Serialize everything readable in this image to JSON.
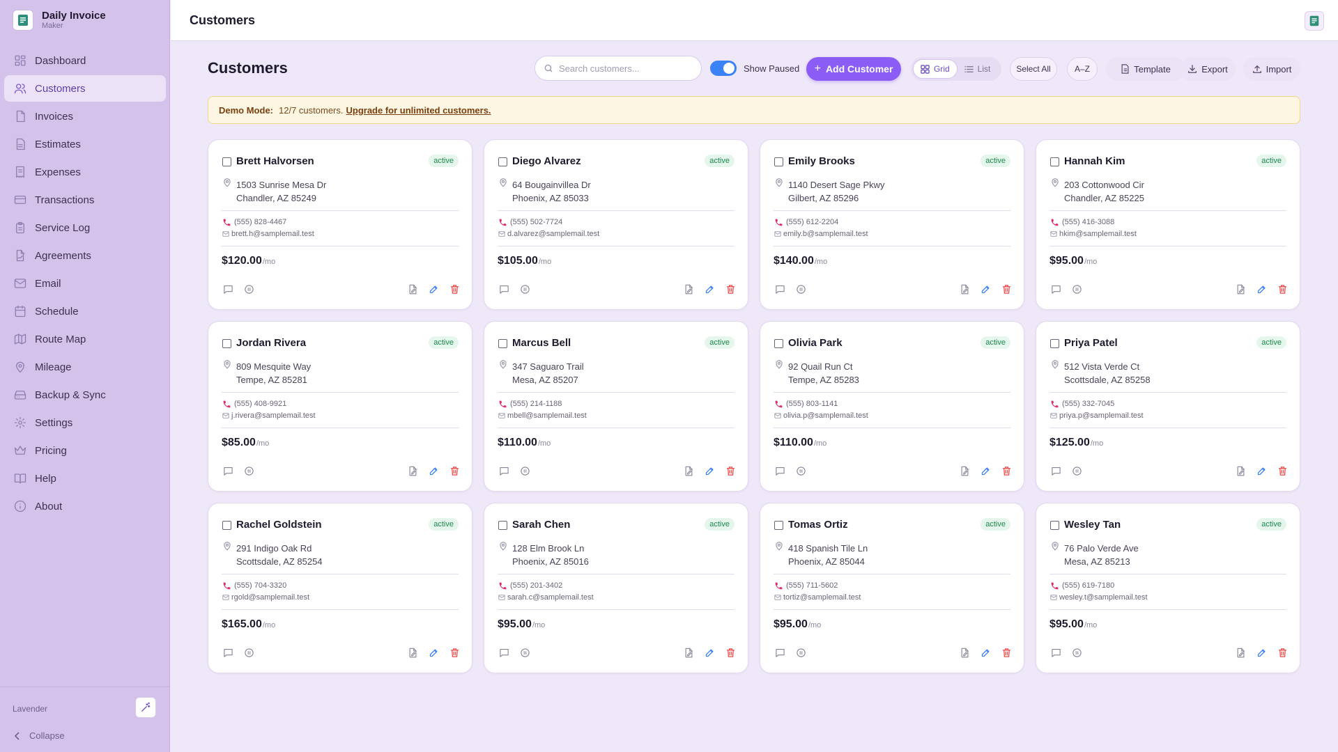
{
  "app": {
    "name": "Daily Invoice",
    "subtitle": "Maker"
  },
  "sidebar": {
    "items": [
      {
        "label": "Dashboard",
        "icon": "dashboard-icon",
        "active": false
      },
      {
        "label": "Customers",
        "icon": "users-icon",
        "active": true
      },
      {
        "label": "Invoices",
        "icon": "file-icon",
        "active": false
      },
      {
        "label": "Estimates",
        "icon": "file-text-icon",
        "active": false
      },
      {
        "label": "Expenses",
        "icon": "receipt-icon",
        "active": false
      },
      {
        "label": "Transactions",
        "icon": "credit-card-icon",
        "active": false
      },
      {
        "label": "Service Log",
        "icon": "clipboard-icon",
        "active": false
      },
      {
        "label": "Agreements",
        "icon": "file-signature-icon",
        "active": false
      },
      {
        "label": "Email",
        "icon": "mail-icon",
        "active": false
      },
      {
        "label": "Schedule",
        "icon": "calendar-icon",
        "active": false
      },
      {
        "label": "Route Map",
        "icon": "map-icon",
        "active": false
      },
      {
        "label": "Mileage",
        "icon": "map-pin-icon",
        "active": false
      },
      {
        "label": "Backup & Sync",
        "icon": "hard-drive-icon",
        "active": false
      },
      {
        "label": "Settings",
        "icon": "gear-icon",
        "active": false
      },
      {
        "label": "Pricing",
        "icon": "crown-icon",
        "active": false
      },
      {
        "label": "Help",
        "icon": "book-icon",
        "active": false
      },
      {
        "label": "About",
        "icon": "info-icon",
        "active": false
      }
    ],
    "theme_label": "Lavender",
    "collapse_label": "Collapse"
  },
  "topbar": {
    "title": "Customers"
  },
  "main": {
    "title": "Customers",
    "search_placeholder": "Search customers...",
    "show_paused_label": "Show Paused",
    "show_paused_on": true,
    "add_customer_label": "Add Customer",
    "view_grid_label": "Grid",
    "view_list_label": "List",
    "select_all_label": "Select All",
    "sort_label": "A–Z",
    "template_label": "Template",
    "export_label": "Export",
    "import_label": "Import"
  },
  "banner": {
    "label": "Demo Mode:",
    "text": "12/7 customers.",
    "link": "Upgrade for unlimited customers."
  },
  "customers": [
    {
      "name": "Brett Halvorsen",
      "status": "active",
      "address1": "1503 Sunrise Mesa Dr",
      "address2": "Chandler, AZ 85249",
      "phone": "(555) 828-4467",
      "email": "brett.h@samplemail.test",
      "price": "$120.00",
      "per": "/mo"
    },
    {
      "name": "Diego Alvarez",
      "status": "active",
      "address1": "64 Bougainvillea Dr",
      "address2": "Phoenix, AZ 85033",
      "phone": "(555) 502-7724",
      "email": "d.alvarez@samplemail.test",
      "price": "$105.00",
      "per": "/mo"
    },
    {
      "name": "Emily Brooks",
      "status": "active",
      "address1": "1140 Desert Sage Pkwy",
      "address2": "Gilbert, AZ 85296",
      "phone": "(555) 612-2204",
      "email": "emily.b@samplemail.test",
      "price": "$140.00",
      "per": "/mo"
    },
    {
      "name": "Hannah Kim",
      "status": "active",
      "address1": "203 Cottonwood Cir",
      "address2": "Chandler, AZ 85225",
      "phone": "(555) 416-3088",
      "email": "hkim@samplemail.test",
      "price": "$95.00",
      "per": "/mo"
    },
    {
      "name": "Jordan Rivera",
      "status": "active",
      "address1": "809 Mesquite Way",
      "address2": "Tempe, AZ 85281",
      "phone": "(555) 408-9921",
      "email": "j.rivera@samplemail.test",
      "price": "$85.00",
      "per": "/mo"
    },
    {
      "name": "Marcus Bell",
      "status": "active",
      "address1": "347 Saguaro Trail",
      "address2": "Mesa, AZ 85207",
      "phone": "(555) 214-1188",
      "email": "mbell@samplemail.test",
      "price": "$110.00",
      "per": "/mo"
    },
    {
      "name": "Olivia Park",
      "status": "active",
      "address1": "92 Quail Run Ct",
      "address2": "Tempe, AZ 85283",
      "phone": "(555) 803-1141",
      "email": "olivia.p@samplemail.test",
      "price": "$110.00",
      "per": "/mo"
    },
    {
      "name": "Priya Patel",
      "status": "active",
      "address1": "512 Vista Verde Ct",
      "address2": "Scottsdale, AZ 85258",
      "phone": "(555) 332-7045",
      "email": "priya.p@samplemail.test",
      "price": "$125.00",
      "per": "/mo"
    },
    {
      "name": "Rachel Goldstein",
      "status": "active",
      "address1": "291 Indigo Oak Rd",
      "address2": "Scottsdale, AZ 85254",
      "phone": "(555) 704-3320",
      "email": "rgold@samplemail.test",
      "price": "$165.00",
      "per": "/mo"
    },
    {
      "name": "Sarah Chen",
      "status": "active",
      "address1": "128 Elm Brook Ln",
      "address2": "Phoenix, AZ 85016",
      "phone": "(555) 201-3402",
      "email": "sarah.c@samplemail.test",
      "price": "$95.00",
      "per": "/mo"
    },
    {
      "name": "Tomas Ortiz",
      "status": "active",
      "address1": "418 Spanish Tile Ln",
      "address2": "Phoenix, AZ 85044",
      "phone": "(555) 711-5602",
      "email": "tortiz@samplemail.test",
      "price": "$95.00",
      "per": "/mo"
    },
    {
      "name": "Wesley Tan",
      "status": "active",
      "address1": "76 Palo Verde Ave",
      "address2": "Mesa, AZ 85213",
      "phone": "(555) 619-7180",
      "email": "wesley.t@samplemail.test",
      "price": "$95.00",
      "per": "/mo"
    }
  ],
  "colors": {
    "accent": "#8b5cf6",
    "toggle_on": "#3b82f6",
    "active_badge_bg": "#e5f6ec",
    "active_badge_text": "#1c8a4a",
    "phone_icon": "#e0286b",
    "edit_icon": "#3b82f6",
    "delete_icon": "#ef4444"
  }
}
